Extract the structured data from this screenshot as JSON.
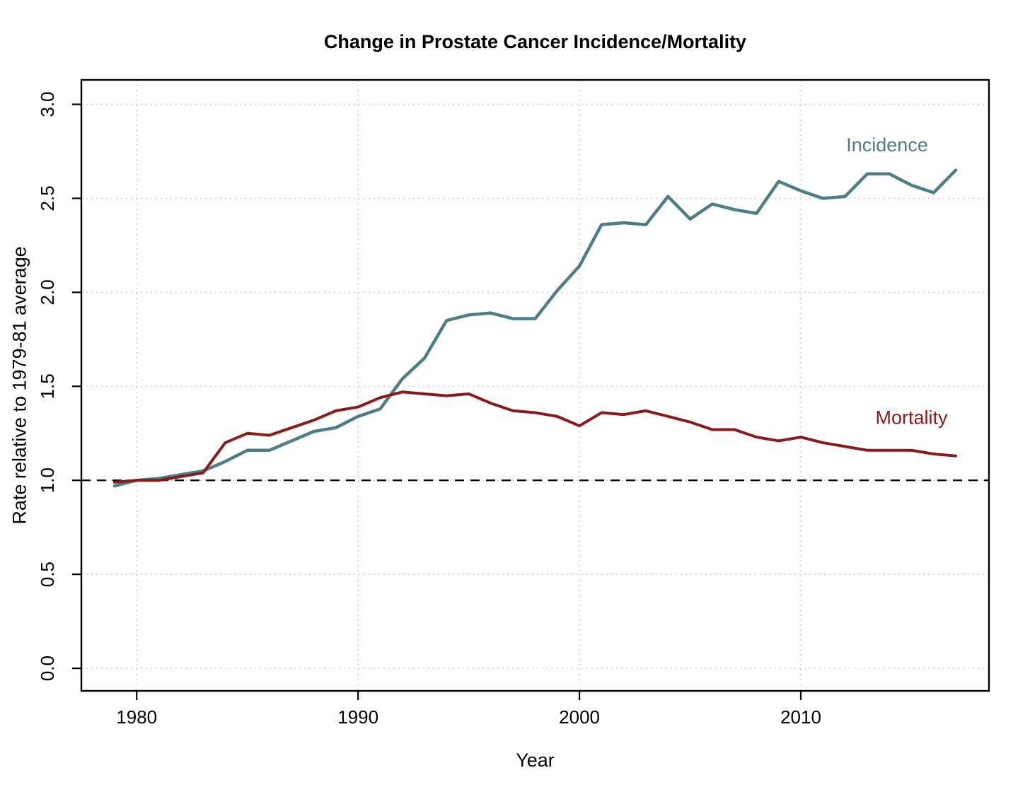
{
  "chart_data": {
    "type": "line",
    "title": "Change in Prostate Cancer Incidence/Mortality",
    "xlabel": "Year",
    "ylabel": "Rate relative to 1979-81 average",
    "x": [
      1979,
      1980,
      1981,
      1982,
      1983,
      1984,
      1985,
      1986,
      1987,
      1988,
      1989,
      1990,
      1991,
      1992,
      1993,
      1994,
      1995,
      1996,
      1997,
      1998,
      1999,
      2000,
      2001,
      2002,
      2003,
      2004,
      2005,
      2006,
      2007,
      2008,
      2009,
      2010,
      2011,
      2012,
      2013,
      2014,
      2015,
      2016,
      2017
    ],
    "series": [
      {
        "name": "Incidence",
        "color": "#4d7e85",
        "line_width": 4.5,
        "label_pos": {
          "x": 2013.9,
          "y": 2.75
        },
        "values": [
          0.97,
          1.0,
          1.01,
          1.03,
          1.05,
          1.1,
          1.16,
          1.16,
          1.21,
          1.26,
          1.28,
          1.34,
          1.38,
          1.54,
          1.65,
          1.85,
          1.88,
          1.89,
          1.86,
          1.86,
          2.01,
          2.14,
          2.36,
          2.37,
          2.36,
          2.51,
          2.39,
          2.47,
          2.44,
          2.42,
          2.59,
          2.54,
          2.5,
          2.51,
          2.63,
          2.63,
          2.57,
          2.53,
          2.65
        ]
      },
      {
        "name": "Mortality",
        "color": "#8b1a1a",
        "line_width": 4,
        "label_pos": {
          "x": 2015,
          "y": 1.3
        },
        "values": [
          0.99,
          1.0,
          1.0,
          1.02,
          1.04,
          1.2,
          1.25,
          1.24,
          1.28,
          1.32,
          1.37,
          1.39,
          1.44,
          1.47,
          1.46,
          1.45,
          1.46,
          1.41,
          1.37,
          1.36,
          1.34,
          1.29,
          1.36,
          1.35,
          1.37,
          1.34,
          1.31,
          1.27,
          1.27,
          1.23,
          1.21,
          1.23,
          1.2,
          1.18,
          1.16,
          1.16,
          1.16,
          1.14,
          1.13
        ]
      }
    ],
    "xlim": [
      1977.5,
      2018.5
    ],
    "ylim": [
      -0.12,
      3.13
    ],
    "xticks": [
      1980,
      1990,
      2000,
      2010
    ],
    "xtick_labels": [
      "1980",
      "1990",
      "2000",
      "2010"
    ],
    "yticks": [
      0.0,
      0.5,
      1.0,
      1.5,
      2.0,
      2.5,
      3.0
    ],
    "ytick_labels": [
      "0.0",
      "0.5",
      "1.0",
      "1.5",
      "2.0",
      "2.5",
      "3.0"
    ],
    "grid": true,
    "legend_position": "inline-labels",
    "reference_line": {
      "y": 1.0,
      "style": "dashed",
      "color": "#000000"
    },
    "colors": {
      "background": "#ffffff",
      "grid": "#d0d0d0",
      "axis": "#000000",
      "text": "#000000",
      "incidence": "#4d7e85",
      "mortality": "#8b1a1a"
    }
  }
}
